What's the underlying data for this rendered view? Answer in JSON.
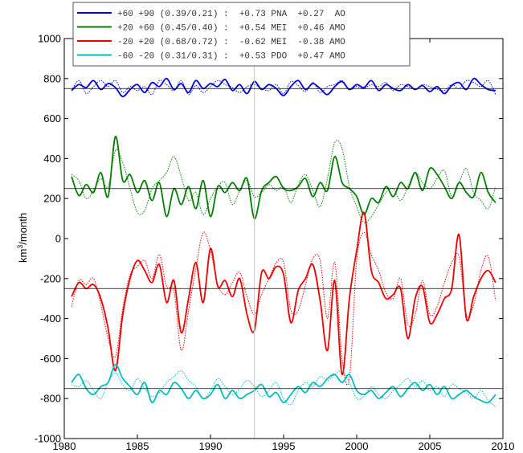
{
  "chart_data": {
    "type": "line",
    "title": "",
    "xlabel": "",
    "ylabel": "km",
    "ylabel_sup": "3",
    "ylabel_suffix": "/month",
    "xlim": [
      1980,
      2010
    ],
    "ylim": [
      -1000,
      1000
    ],
    "xticks": [
      1980,
      1985,
      1990,
      1995,
      2000,
      2005,
      2010
    ],
    "yticks": [
      -1000,
      -800,
      -600,
      -400,
      -200,
      0,
      200,
      400,
      600,
      800,
      1000
    ],
    "grid": false,
    "legend_position": "top-center",
    "vertical_marker_x": 1993,
    "series": [
      {
        "name": "+60 +90 (0.39/0.21) :  +0.73 PNA  +0.27  AO",
        "color": "#0000e0",
        "mean": 750,
        "x": [
          1980.5,
          1981,
          1981.5,
          1982,
          1982.5,
          1983,
          1983.5,
          1984,
          1984.5,
          1985,
          1985.5,
          1986,
          1986.5,
          1987,
          1987.5,
          1988,
          1988.5,
          1989,
          1989.5,
          1990,
          1990.5,
          1991,
          1991.5,
          1992,
          1992.5,
          1993,
          1993.5,
          1994,
          1994.5,
          1995,
          1995.5,
          1996,
          1996.5,
          1997,
          1997.5,
          1998,
          1998.5,
          1999,
          1999.5,
          2000,
          2000.5,
          2001,
          2001.5,
          2002,
          2002.5,
          2003,
          2003.5,
          2004,
          2004.5,
          2005,
          2005.5,
          2006,
          2006.5,
          2007,
          2007.5,
          2008,
          2008.5,
          2009,
          2009.5
        ],
        "values": [
          740,
          770,
          755,
          790,
          745,
          775,
          755,
          710,
          745,
          770,
          730,
          780,
          760,
          800,
          745,
          775,
          730,
          790,
          750,
          775,
          760,
          795,
          740,
          770,
          725,
          785,
          745,
          770,
          750,
          715,
          760,
          790,
          745,
          775,
          750,
          720,
          760,
          785,
          745,
          770,
          755,
          790,
          740,
          770,
          750,
          740,
          770,
          745,
          765,
          735,
          760,
          725,
          765,
          780,
          745,
          800,
          770,
          745,
          740
        ],
        "values_model": [
          740,
          790,
          725,
          760,
          790,
          760,
          790,
          730,
          760,
          740,
          760,
          720,
          790,
          770,
          740,
          790,
          720,
          765,
          730,
          760,
          790,
          770,
          755,
          730,
          760,
          770,
          750,
          740,
          770,
          725,
          785,
          765,
          735,
          780,
          730,
          760,
          770,
          790,
          745,
          760,
          750,
          770,
          760,
          780,
          740,
          770,
          760,
          745,
          770,
          760,
          745,
          740,
          770,
          750,
          790,
          780,
          760,
          790,
          720
        ]
      },
      {
        "name": "+20 +60 (0.45/0.40) :  +0.54 MEI  +0.46 AMO",
        "color": "#008000",
        "mean": 250,
        "x": [
          1980.5,
          1981,
          1981.5,
          1982,
          1982.5,
          1983,
          1983.5,
          1984,
          1984.5,
          1985,
          1985.5,
          1986,
          1986.5,
          1987,
          1987.5,
          1988,
          1988.5,
          1989,
          1989.5,
          1990,
          1990.5,
          1991,
          1991.5,
          1992,
          1992.5,
          1993,
          1993.5,
          1994,
          1994.5,
          1995,
          1995.5,
          1996,
          1996.5,
          1997,
          1997.5,
          1998,
          1998.5,
          1999,
          1999.5,
          2000,
          2000.5,
          2001,
          2001.5,
          2002,
          2002.5,
          2003,
          2003.5,
          2004,
          2004.5,
          2005,
          2005.5,
          2006,
          2006.5,
          2007,
          2007.5,
          2008,
          2008.5,
          2009,
          2009.5
        ],
        "values": [
          310,
          215,
          270,
          230,
          330,
          210,
          510,
          290,
          320,
          230,
          290,
          190,
          280,
          110,
          250,
          170,
          260,
          150,
          290,
          110,
          260,
          230,
          280,
          240,
          300,
          100,
          240,
          280,
          310,
          250,
          240,
          260,
          300,
          210,
          280,
          240,
          410,
          280,
          250,
          210,
          120,
          200,
          180,
          260,
          210,
          280,
          250,
          330,
          240,
          350,
          320,
          260,
          200,
          280,
          230,
          210,
          330,
          230,
          180
        ],
        "values_model": [
          320,
          290,
          200,
          240,
          300,
          260,
          440,
          380,
          250,
          130,
          140,
          250,
          290,
          330,
          410,
          310,
          190,
          230,
          120,
          200,
          260,
          280,
          170,
          240,
          290,
          210,
          230,
          270,
          240,
          260,
          180,
          270,
          320,
          240,
          160,
          300,
          480,
          450,
          260,
          160,
          80,
          110,
          170,
          230,
          250,
          190,
          260,
          330,
          280,
          250,
          300,
          340,
          210,
          280,
          350,
          230,
          190,
          150,
          260
        ]
      },
      {
        "name": "-20 +20 (0.68/0.72) :  -0.62 MEI  -0.38 AMO",
        "color": "#ee0000",
        "mean": -250,
        "x": [
          1980.5,
          1981,
          1981.5,
          1982,
          1982.5,
          1983,
          1983.5,
          1984,
          1984.5,
          1985,
          1985.5,
          1986,
          1986.5,
          1987,
          1987.5,
          1988,
          1988.5,
          1989,
          1989.5,
          1990,
          1990.5,
          1991,
          1991.5,
          1992,
          1992.5,
          1993,
          1993.5,
          1994,
          1994.5,
          1995,
          1995.5,
          1996,
          1996.5,
          1997,
          1997.5,
          1998,
          1998.5,
          1999,
          1999.5,
          2000,
          2000.5,
          2001,
          2001.5,
          2002,
          2002.5,
          2003,
          2003.5,
          2004,
          2004.5,
          2005,
          2005.5,
          2006,
          2006.5,
          2007,
          2007.5,
          2008,
          2008.5,
          2009,
          2009.5
        ],
        "values": [
          -290,
          -220,
          -250,
          -230,
          -300,
          -450,
          -660,
          -380,
          -200,
          -110,
          -160,
          -220,
          -130,
          -320,
          -210,
          -470,
          -300,
          -120,
          -320,
          -50,
          -240,
          -210,
          -290,
          -200,
          -380,
          -460,
          -170,
          -200,
          -140,
          -180,
          -420,
          -260,
          -200,
          -130,
          -310,
          -560,
          -210,
          -680,
          -300,
          -60,
          130,
          -160,
          -220,
          -300,
          -280,
          -250,
          -500,
          -300,
          -240,
          -420,
          -380,
          -300,
          -250,
          20,
          -400,
          -290,
          -200,
          -160,
          -220
        ],
        "values_model": [
          -340,
          -210,
          -230,
          -200,
          -330,
          -500,
          -590,
          -350,
          -180,
          -140,
          -110,
          -200,
          -80,
          -240,
          -260,
          -560,
          -360,
          -150,
          30,
          -60,
          -230,
          -280,
          -220,
          -170,
          -290,
          -380,
          -280,
          -200,
          -120,
          -120,
          -360,
          -360,
          -230,
          -100,
          -110,
          -400,
          -120,
          -600,
          -700,
          -110,
          30,
          -80,
          -160,
          -270,
          -300,
          -200,
          -430,
          -380,
          -210,
          -380,
          -340,
          -220,
          -120,
          -90,
          -380,
          -330,
          -160,
          -90,
          -310
        ]
      },
      {
        "name": "-60 -20 (0.31/0.31) :  +0.53 PDO  +0.47 AMO",
        "color": "#00bebe",
        "mean": -750,
        "x": [
          1980.5,
          1981,
          1981.5,
          1982,
          1982.5,
          1983,
          1983.5,
          1984,
          1984.5,
          1985,
          1985.5,
          1986,
          1986.5,
          1987,
          1987.5,
          1988,
          1988.5,
          1989,
          1989.5,
          1990,
          1990.5,
          1991,
          1991.5,
          1992,
          1992.5,
          1993,
          1993.5,
          1994,
          1994.5,
          1995,
          1995.5,
          1996,
          1996.5,
          1997,
          1997.5,
          1998,
          1998.5,
          1999,
          1999.5,
          2000,
          2000.5,
          2001,
          2001.5,
          2002,
          2002.5,
          2003,
          2003.5,
          2004,
          2004.5,
          2005,
          2005.5,
          2006,
          2006.5,
          2007,
          2007.5,
          2008,
          2008.5,
          2009,
          2009.5
        ],
        "values": [
          -720,
          -680,
          -750,
          -780,
          -740,
          -720,
          -630,
          -700,
          -740,
          -780,
          -720,
          -820,
          -760,
          -780,
          -720,
          -750,
          -800,
          -760,
          -800,
          -780,
          -730,
          -800,
          -760,
          -800,
          -780,
          -760,
          -730,
          -790,
          -770,
          -820,
          -780,
          -740,
          -770,
          -720,
          -740,
          -700,
          -680,
          -720,
          -680,
          -760,
          -780,
          -760,
          -800,
          -770,
          -740,
          -790,
          -750,
          -720,
          -760,
          -730,
          -780,
          -740,
          -800,
          -780,
          -760,
          -790,
          -810,
          -820,
          -780
        ],
        "values_model": [
          -730,
          -740,
          -710,
          -760,
          -800,
          -720,
          -670,
          -730,
          -760,
          -700,
          -750,
          -790,
          -770,
          -720,
          -690,
          -660,
          -710,
          -740,
          -800,
          -760,
          -700,
          -740,
          -780,
          -750,
          -710,
          -740,
          -790,
          -760,
          -720,
          -800,
          -830,
          -760,
          -720,
          -740,
          -690,
          -710,
          -680,
          -660,
          -720,
          -800,
          -790,
          -740,
          -780,
          -800,
          -760,
          -730,
          -700,
          -740,
          -710,
          -760,
          -740,
          -790,
          -730,
          -750,
          -770,
          -800,
          -760,
          -810,
          -840
        ]
      }
    ]
  }
}
